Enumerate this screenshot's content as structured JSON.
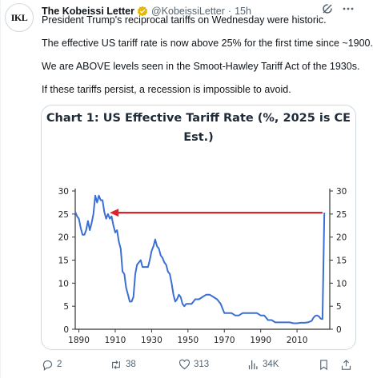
{
  "author": {
    "avatar_text": "IKL",
    "name": "The Kobeissi Letter",
    "handle": "@KobeissiLetter",
    "separator": "·",
    "time": "15h"
  },
  "tweet_lines": [
    "President Trump's reciprocal tariffs on Wednesday were historic.",
    "The effective US tariff rate is now above 25% for the first time since ~1900.",
    "We are ABOVE levels seen in the Smoot-Hawley Tariff Act of the 1930s.",
    "If these tariffs persist, a recession is impossible to avoid."
  ],
  "chart_data": {
    "type": "line",
    "title_line1": "Chart 1: US Effective Tariff Rate (%, 2025 is CE",
    "title_line2": "Est.)",
    "xlim": [
      1888,
      2028
    ],
    "ylim": [
      0,
      30
    ],
    "x_ticks": [
      1890,
      1910,
      1930,
      1950,
      1970,
      1990,
      2010
    ],
    "y_ticks": [
      0,
      5,
      10,
      15,
      20,
      25,
      30
    ],
    "line_color": "#3b6fd4",
    "arrow_color": "#e0232b",
    "arrow": {
      "from": [
        2024,
        25.3
      ],
      "to": [
        1907,
        25.3
      ]
    },
    "series": [
      {
        "x": [
          1888,
          1889,
          1890,
          1891,
          1892,
          1893,
          1894,
          1895,
          1896,
          1897,
          1898,
          1899,
          1900,
          1901,
          1902,
          1903,
          1904,
          1905,
          1906,
          1907,
          1908,
          1909,
          1910,
          1911,
          1912,
          1913,
          1914,
          1915,
          1916,
          1917,
          1918,
          1919,
          1920,
          1921,
          1922,
          1923,
          1924,
          1925,
          1926,
          1927,
          1928,
          1929,
          1930,
          1931,
          1932,
          1933,
          1934,
          1935,
          1936,
          1937,
          1938,
          1939,
          1940,
          1941,
          1942,
          1943,
          1944,
          1945,
          1946,
          1947,
          1948,
          1949,
          1950,
          1952,
          1954,
          1956,
          1958,
          1960,
          1962,
          1964,
          1966,
          1968,
          1970,
          1972,
          1974,
          1976,
          1978,
          1980,
          1982,
          1984,
          1986,
          1988,
          1990,
          1992,
          1994,
          1996,
          1998,
          2000,
          2002,
          2004,
          2006,
          2008,
          2010,
          2012,
          2014,
          2016,
          2018,
          2019,
          2020,
          2021,
          2022,
          2023,
          2024,
          2025
        ],
        "y": [
          25.5,
          24.5,
          24.0,
          22.0,
          20.5,
          20.5,
          21.5,
          23.5,
          21.5,
          23.0,
          25.0,
          29.0,
          27.5,
          29.0,
          28.0,
          28.0,
          25.5,
          24.0,
          25.0,
          24.0,
          24.5,
          22.5,
          21.0,
          21.5,
          19.0,
          17.5,
          12.5,
          12.0,
          9.0,
          7.5,
          6.0,
          6.0,
          7.0,
          12.0,
          14.0,
          14.5,
          15.0,
          13.5,
          13.5,
          13.5,
          13.5,
          15.0,
          17.0,
          18.0,
          19.5,
          18.0,
          17.5,
          16.0,
          15.5,
          14.5,
          14.0,
          12.5,
          12.0,
          10.0,
          7.5,
          6.0,
          6.5,
          7.5,
          7.0,
          5.5,
          5.0,
          5.5,
          5.5,
          5.5,
          6.5,
          6.5,
          7.0,
          7.5,
          7.5,
          7.0,
          6.5,
          5.5,
          3.5,
          3.5,
          3.5,
          3.0,
          3.0,
          3.5,
          3.5,
          3.5,
          3.5,
          3.5,
          3.0,
          3.0,
          2.0,
          2.0,
          1.5,
          1.5,
          1.5,
          1.5,
          1.5,
          1.3,
          1.3,
          1.4,
          1.4,
          1.5,
          1.8,
          2.5,
          2.9,
          3.0,
          2.8,
          2.3,
          2.2,
          25.3
        ]
      }
    ]
  },
  "actions": {
    "replies": "2",
    "reposts": "38",
    "likes": "313",
    "views": "34K"
  },
  "colors": {
    "text": "#0f1419",
    "muted": "#536471",
    "verified": "#e8b700"
  },
  "icons": [
    "verified-badge-icon",
    "grok-icon",
    "more-icon",
    "reply-icon",
    "repost-icon",
    "like-icon",
    "views-icon",
    "bookmark-icon",
    "share-icon"
  ]
}
